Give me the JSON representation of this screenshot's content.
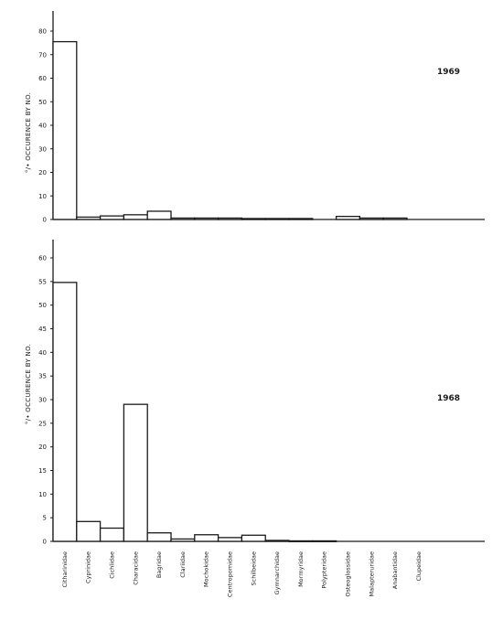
{
  "chart_data": {
    "type": "bar",
    "categories": [
      "Citharinidae",
      "Cyprinidae",
      "Cichlidae",
      "Characidae",
      "Bagridae",
      "Clariidae",
      "Mochokidae",
      "Centropomidae",
      "Schilbeidae",
      "Gymnarchidae",
      "Mormyridae",
      "Polypteridae",
      "Osteoglossidae",
      "Malapteruridae",
      "Anabantidae",
      "Clupeidae"
    ],
    "ylabel": "°/• OCCURENCE BY NO.",
    "panels": [
      {
        "name": "1969",
        "ylim": [
          0,
          80
        ],
        "yticks": [
          0,
          10,
          20,
          30,
          40,
          50,
          60,
          70,
          80
        ],
        "values": [
          75.5,
          1.0,
          1.5,
          2.0,
          3.5,
          0.6,
          0.6,
          0.6,
          0.4,
          0.4,
          0.4,
          0,
          1.3,
          0.6,
          0.6,
          0
        ]
      },
      {
        "name": "1968",
        "ylim": [
          0,
          60
        ],
        "yticks": [
          0,
          5,
          10,
          15,
          20,
          25,
          30,
          35,
          40,
          45,
          50,
          55,
          60
        ],
        "values": [
          54.8,
          4.2,
          2.8,
          29.0,
          1.8,
          0.5,
          1.4,
          0.8,
          1.3,
          0.2,
          0.1,
          0.1,
          0,
          0,
          0,
          0
        ]
      }
    ]
  }
}
